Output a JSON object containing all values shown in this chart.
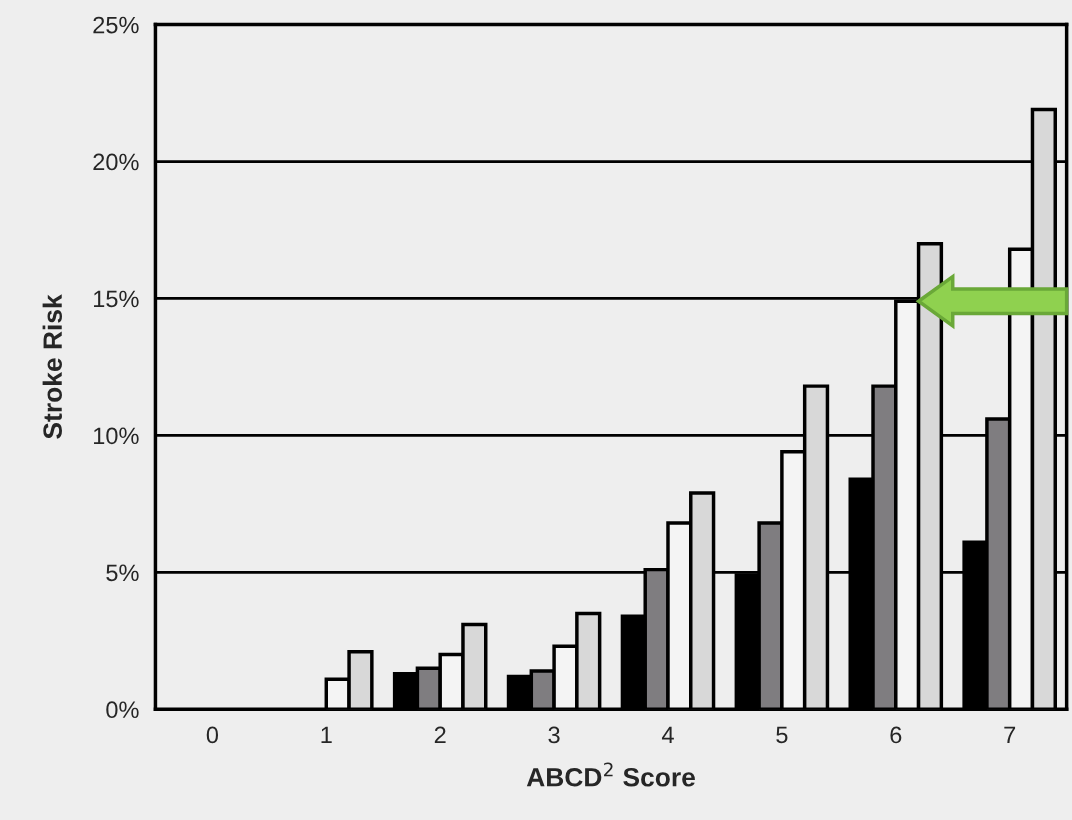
{
  "chart_data": {
    "type": "bar",
    "xlabel": "ABCD$^{2}$ Score",
    "ylabel": "Stroke Risk",
    "categories": [
      "0",
      "1",
      "2",
      "3",
      "4",
      "5",
      "6",
      "7"
    ],
    "series": [
      {
        "color": "#000000",
        "values": [
          null,
          null,
          1.3,
          1.2,
          3.4,
          4.9,
          8.4,
          6.1
        ]
      },
      {
        "color": "#7f7d80",
        "values": [
          null,
          null,
          1.5,
          1.4,
          5.1,
          6.8,
          11.8,
          10.6
        ]
      },
      {
        "color": "#f4f4f4",
        "values": [
          null,
          1.1,
          2.0,
          2.3,
          6.8,
          9.4,
          14.9,
          16.8
        ]
      },
      {
        "color": "#d8d8d8",
        "values": [
          null,
          2.1,
          3.1,
          3.5,
          7.9,
          11.8,
          17.0,
          21.9
        ]
      }
    ],
    "ylim": [
      0,
      25
    ],
    "yticks": [
      {
        "value": 0,
        "label": "0%"
      },
      {
        "value": 5,
        "label": "5%"
      },
      {
        "value": 10,
        "label": "10%"
      },
      {
        "value": 15,
        "label": "15%"
      },
      {
        "value": 20,
        "label": "20%"
      },
      {
        "value": 25,
        "label": "25%"
      }
    ],
    "grid": "y",
    "legend": false
  }
}
